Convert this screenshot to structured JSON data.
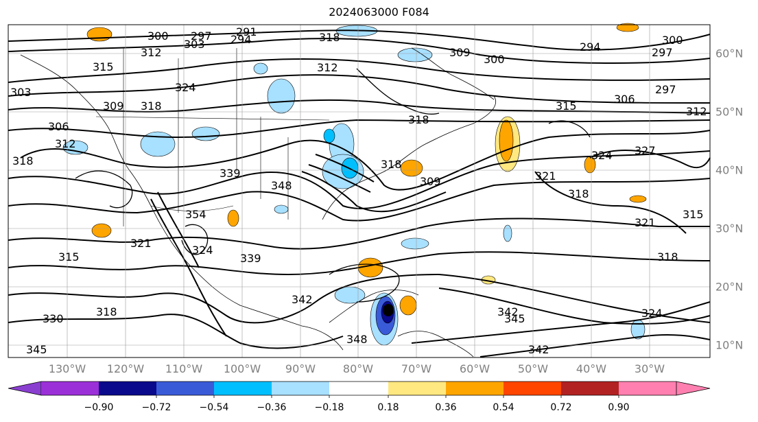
{
  "title": "2024063000 F084",
  "map": {
    "lon_labels": [
      "130°W",
      "120°W",
      "110°W",
      "100°W",
      "90°W",
      "80°W",
      "70°W",
      "60°W",
      "50°W",
      "40°W",
      "30°W"
    ],
    "lat_labels": [
      "60°N",
      "50°N",
      "40°N",
      "30°N",
      "20°N",
      "10°N"
    ],
    "contour_labels": [
      "300",
      "297",
      "291",
      "294",
      "303",
      "318",
      "312",
      "315",
      "312",
      "309",
      "300",
      "294",
      "300",
      "297",
      "324",
      "303",
      "309",
      "318",
      "315",
      "306",
      "297",
      "312",
      "306",
      "312",
      "318",
      "318",
      "339",
      "348",
      "318",
      "324",
      "327",
      "309",
      "321",
      "318",
      "315",
      "321",
      "318",
      "354",
      "321",
      "324",
      "339",
      "342",
      "342",
      "345",
      "324",
      "330",
      "318",
      "315",
      "348",
      "342",
      "345"
    ]
  },
  "colorbar": {
    "colors": [
      "#8a3fd0",
      "#9b30d8",
      "#0a0a8c",
      "#3a5bd8",
      "#00bfff",
      "#a8e0ff",
      "#ffffff",
      "#ffe880",
      "#ffa500",
      "#ff4500",
      "#b22222",
      "#ff7fa8",
      "#ff80b0"
    ],
    "tick_labels": [
      "−0.90",
      "−0.72",
      "−0.54",
      "−0.36",
      "−0.18",
      "0.18",
      "0.36",
      "0.54",
      "0.72",
      "0.90"
    ]
  }
}
